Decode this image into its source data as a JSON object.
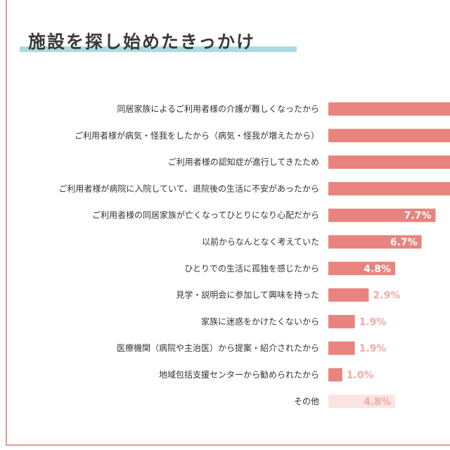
{
  "page": {
    "title": "施設を探し始めたきっかけ",
    "colors": {
      "bar": "#e8837d",
      "bar_other": "#fbe4e1",
      "title_underline": "#a9dbe2",
      "frame": "#e79a95",
      "label_light": "#f2aaa5",
      "label_white": "#ffffff"
    }
  },
  "chart_data": {
    "type": "bar",
    "orientation": "horizontal",
    "title": "施設を探し始めたきっかけ",
    "xlabel": "",
    "ylabel": "",
    "xlim": [
      0,
      10
    ],
    "grid": false,
    "legend": "none",
    "categories": [
      "同居家族によるご利用者様の介護が難しくなったから",
      "ご利用者様が病気・怪我をしたから（病気・怪我が増えたから）",
      "ご利用者様の認知症が進行してきたため",
      "ご利用者様が病院に入院していて、退院後の生活に不安があったから",
      "ご利用者様の同居家族が亡くなってひとりになり心配だから",
      "以前からなんとなく考えていた",
      "ひとりでの生活に孤独を感じたから",
      "見学・説明会に参加して興味を持った",
      "家族に迷惑をかけたくないから",
      "医療機関（病院や主治医）から提案・紹介されたから",
      "地域包括支援センターから勧められたから",
      "その他"
    ],
    "values": [
      null,
      null,
      null,
      null,
      7.7,
      6.7,
      4.8,
      2.9,
      1.9,
      1.9,
      1.0,
      4.8
    ],
    "value_labels": [
      "",
      "",
      "",
      "",
      "7.7%",
      "6.7%",
      "4.8%",
      "2.9%",
      "1.9%",
      "1.9%",
      "1.0%",
      "4.8%"
    ]
  }
}
